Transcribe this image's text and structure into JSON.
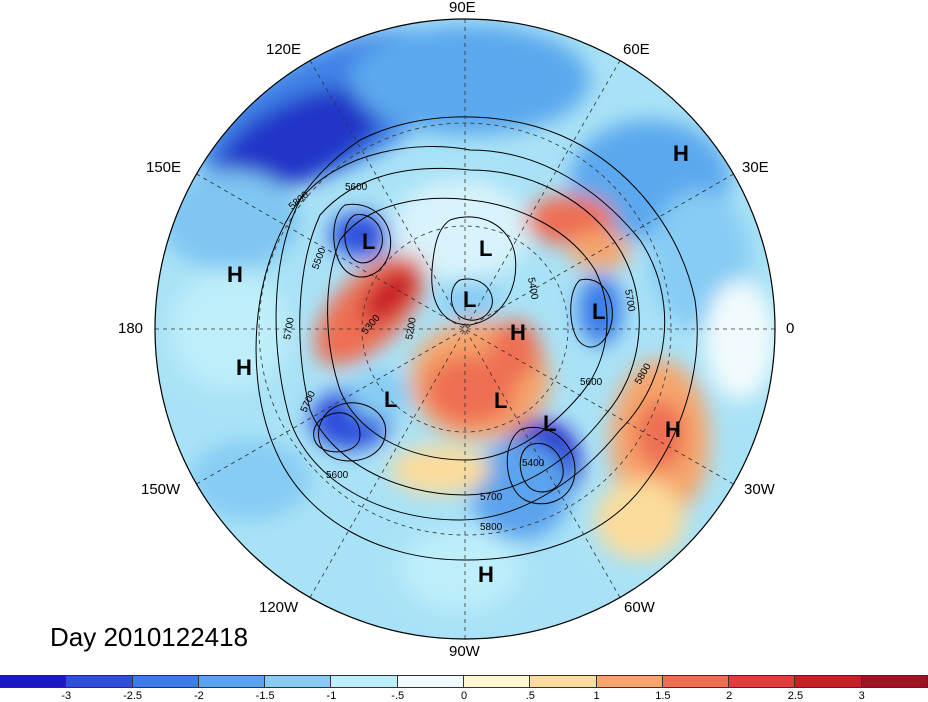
{
  "title": "Day 2010122418",
  "longitude_labels": {
    "top": "90E",
    "top_left": "120E",
    "top_right": "60E",
    "left_upper": "150E",
    "right_upper": "30E",
    "left": "180",
    "right": "0",
    "left_lower": "150W",
    "right_lower": "30W",
    "bottom_left": "120W",
    "bottom_right": "60W",
    "bottom": "90W"
  },
  "pressure_centers": [
    {
      "type": "H"
    },
    {
      "type": "H"
    },
    {
      "type": "H"
    },
    {
      "type": "H"
    },
    {
      "type": "H"
    },
    {
      "type": "H"
    },
    {
      "type": "L"
    },
    {
      "type": "L"
    },
    {
      "type": "L"
    },
    {
      "type": "L"
    },
    {
      "type": "L"
    },
    {
      "type": "L"
    },
    {
      "type": "L"
    }
  ],
  "contour_labels": [
    "5600",
    "5500",
    "5800",
    "5700",
    "5300",
    "5200",
    "5400",
    "5700",
    "5600",
    "5800",
    "5400",
    "5700",
    "5800",
    "5700",
    "5600"
  ],
  "colorbar": {
    "colors": [
      "#1a18c8",
      "#2e4fdc",
      "#3b7ce8",
      "#5ba3ee",
      "#86ccf4",
      "#bdeefa",
      "#f1fbfd",
      "#fdf6d3",
      "#fbdc9c",
      "#f6a56c",
      "#ee6e52",
      "#e33a3a",
      "#c81e26",
      "#9e1222"
    ],
    "ticks": [
      "-3",
      "-2.5",
      "-2",
      "-1.5",
      "-1",
      "-.5",
      "0",
      ".5",
      "1",
      "1.5",
      "2",
      "2.5",
      "3"
    ]
  }
}
